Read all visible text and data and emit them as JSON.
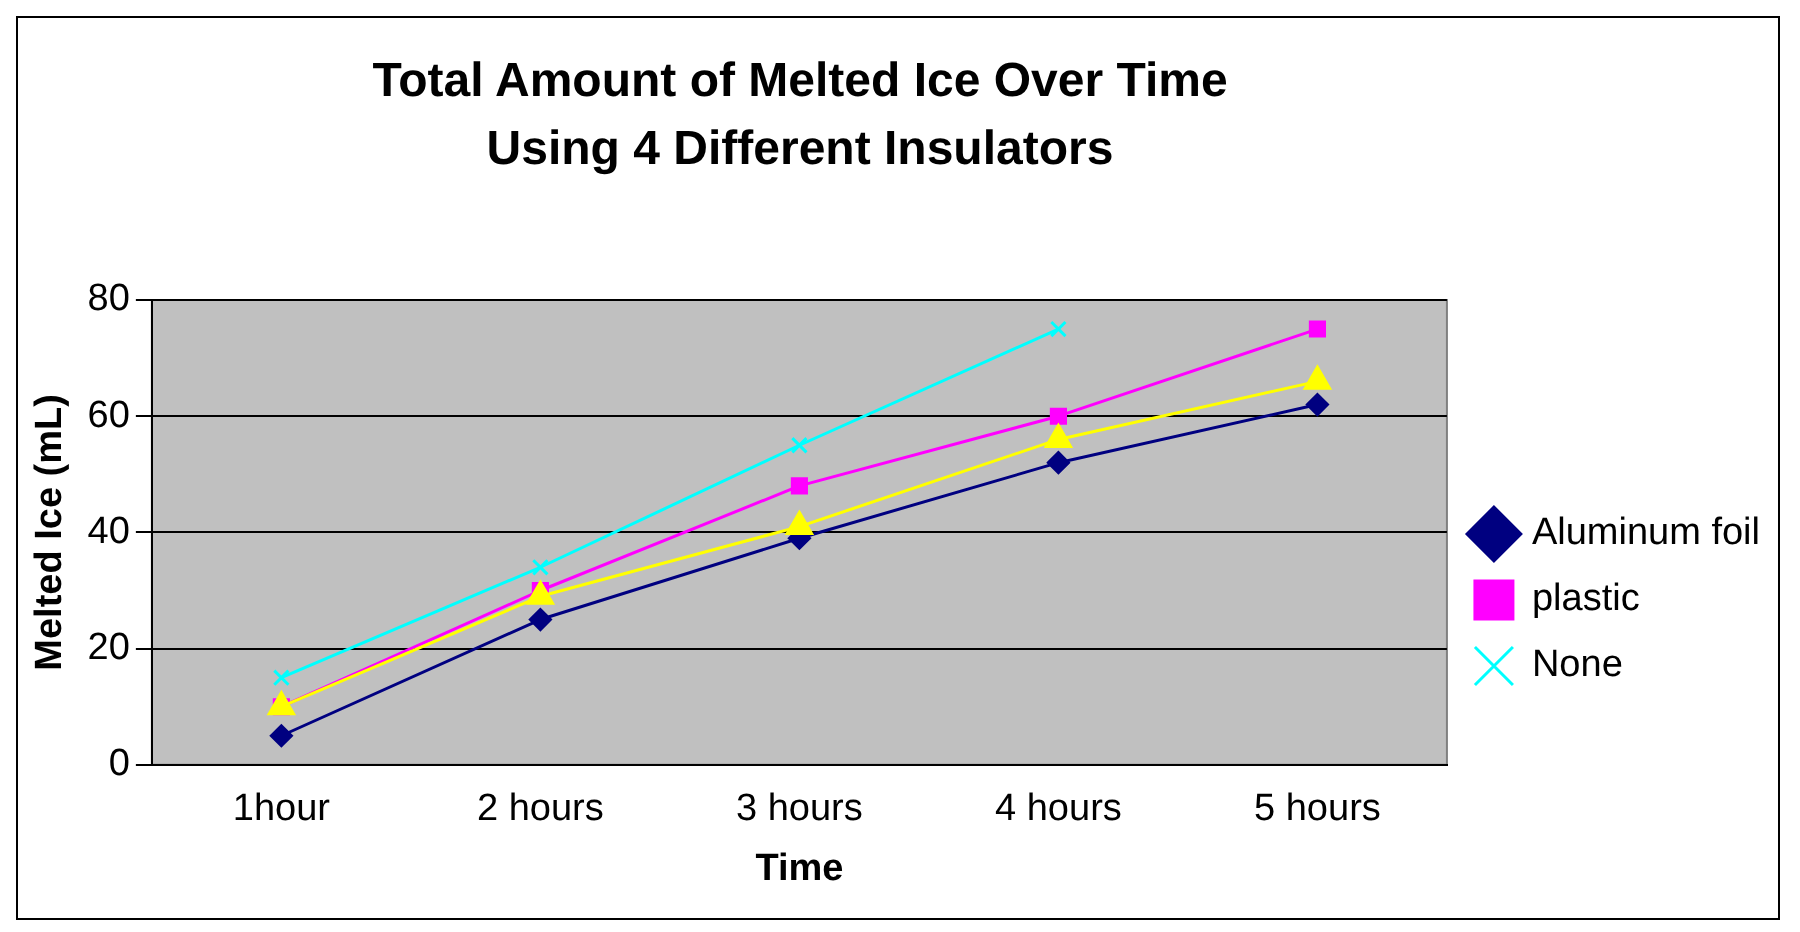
{
  "chart_data": {
    "type": "line",
    "title": "Total Amount of Melted Ice Over Time Using 4 Different Insulators",
    "xlabel": "Time",
    "ylabel": "Melted Ice (mL)",
    "categories": [
      "1hour",
      "2 hours",
      "3 hours",
      "4 hours",
      "5 hours"
    ],
    "series": [
      {
        "name": "Aluminum foil",
        "color": "#000080",
        "marker": "diamond",
        "values": [
          5,
          25,
          39,
          52,
          62
        ]
      },
      {
        "name": "plastic",
        "color": "#ff00ff",
        "marker": "square",
        "values": [
          10,
          30,
          48,
          60,
          75
        ]
      },
      {
        "color": "#ffff00",
        "marker": "triangle",
        "values": [
          10,
          29,
          41,
          56,
          66
        ]
      },
      {
        "name": "None",
        "color": "#00ffff",
        "marker": "cross",
        "values": [
          15,
          34,
          55,
          75,
          null
        ]
      }
    ],
    "ylim": [
      0,
      80
    ],
    "yticks": [
      0,
      20,
      40,
      60,
      80
    ],
    "grid": "y",
    "legend": "right",
    "line_style": "solid"
  }
}
